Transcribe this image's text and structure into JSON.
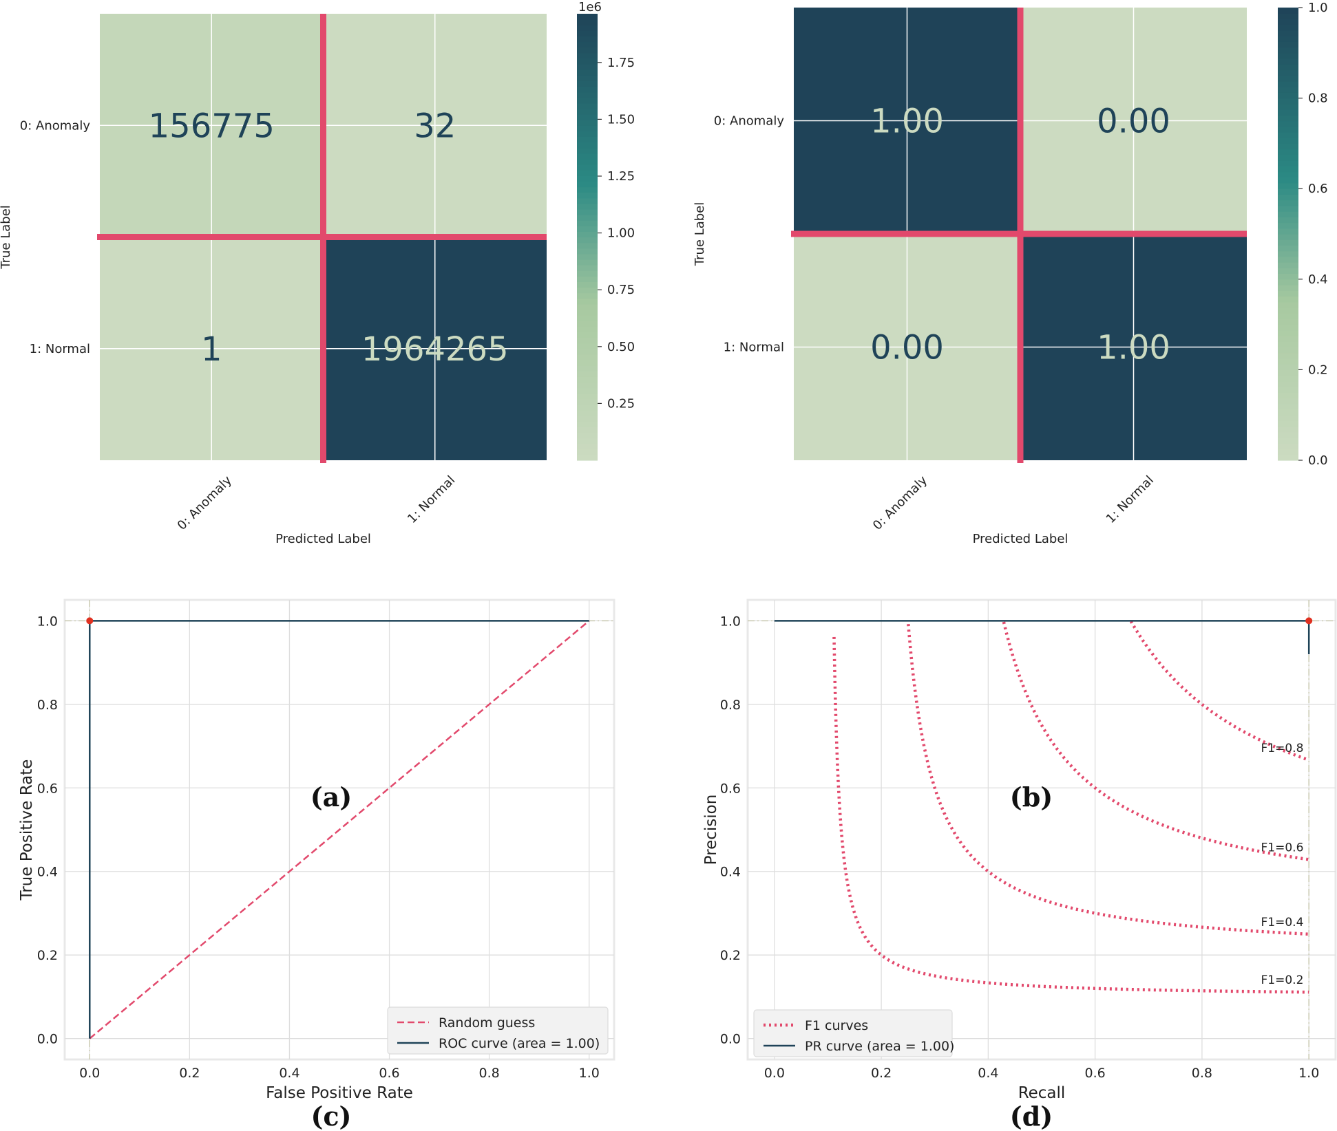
{
  "panels": {
    "a": {
      "caption": "(a)"
    },
    "b": {
      "caption": "(b)"
    },
    "c": {
      "caption": "(c)"
    },
    "d": {
      "caption": "(d)"
    }
  },
  "colors": {
    "dark": "#1f4358",
    "light": "#ccdbc1",
    "mid_green": "#a7c9a0",
    "teal": "#2b8a84",
    "highlight": "#e2496c",
    "grid": "#dedede",
    "marker": "#e03020"
  },
  "chart_data": [
    {
      "id": "a",
      "type": "heatmap",
      "title": "",
      "xlabel": "Predicted Label",
      "ylabel": "True Label",
      "x_categories": [
        "0: Anomaly",
        "1: Normal"
      ],
      "y_categories": [
        "0: Anomaly",
        "1: Normal"
      ],
      "values": [
        [
          156775,
          32
        ],
        [
          1,
          1964265
        ]
      ],
      "cell_labels": [
        [
          "156775",
          "32"
        ],
        [
          "1",
          "1964265"
        ]
      ],
      "colorbar": {
        "exponent_label": "1e6",
        "range": [
          0,
          1964265
        ],
        "ticks": [
          0.25,
          0.5,
          0.75,
          1.0,
          1.25,
          1.5,
          1.75
        ],
        "tick_labels": [
          "0.25",
          "0.50",
          "0.75",
          "1.00",
          "1.25",
          "1.50",
          "1.75"
        ],
        "tick_scale": 1000000
      }
    },
    {
      "id": "b",
      "type": "heatmap",
      "title": "",
      "xlabel": "Predicted Label",
      "ylabel": "True Label",
      "x_categories": [
        "0: Anomaly",
        "1: Normal"
      ],
      "y_categories": [
        "0: Anomaly",
        "1: Normal"
      ],
      "values": [
        [
          1.0,
          0.0
        ],
        [
          0.0,
          1.0
        ]
      ],
      "cell_labels": [
        [
          "1.00",
          "0.00"
        ],
        [
          "0.00",
          "1.00"
        ]
      ],
      "colorbar": {
        "range": [
          0,
          1
        ],
        "ticks": [
          0.0,
          0.2,
          0.4,
          0.6,
          0.8,
          1.0
        ],
        "tick_labels": [
          "0.0",
          "0.2",
          "0.4",
          "0.6",
          "0.8",
          "1.0"
        ],
        "tick_scale": 1
      }
    },
    {
      "id": "c",
      "type": "line",
      "xlabel": "False Positive Rate",
      "ylabel": "True Positive Rate",
      "xlim": [
        -0.05,
        1.05
      ],
      "ylim": [
        -0.05,
        1.05
      ],
      "ticks": [
        0.0,
        0.2,
        0.4,
        0.6,
        0.8,
        1.0
      ],
      "tick_labels": [
        "0.0",
        "0.2",
        "0.4",
        "0.6",
        "0.8",
        "1.0"
      ],
      "grid": true,
      "legend_position": "lower-right",
      "series": [
        {
          "name": "Random guess",
          "style": "dashed",
          "x": [
            0,
            1
          ],
          "y": [
            0,
            1
          ]
        },
        {
          "name": "ROC curve (area = 1.00)",
          "style": "solid",
          "x": [
            0,
            0,
            1
          ],
          "y": [
            0,
            1,
            1
          ]
        }
      ],
      "marker_point": {
        "x": 0,
        "y": 1
      }
    },
    {
      "id": "d",
      "type": "line",
      "xlabel": "Recall",
      "ylabel": "Precision",
      "xlim": [
        -0.05,
        1.05
      ],
      "ylim": [
        -0.05,
        1.05
      ],
      "ticks": [
        0.0,
        0.2,
        0.4,
        0.6,
        0.8,
        1.0
      ],
      "tick_labels": [
        "0.0",
        "0.2",
        "0.4",
        "0.6",
        "0.8",
        "1.0"
      ],
      "grid": true,
      "legend_position": "lower-left",
      "series": [
        {
          "name": "F1 curves",
          "style": "dotted"
        },
        {
          "name": "PR curve (area = 1.00)",
          "style": "solid",
          "x": [
            0,
            1,
            1
          ],
          "y": [
            1,
            1,
            0.92
          ]
        }
      ],
      "f1_curves": [
        {
          "f1": 0.2,
          "label": "F1=0.2"
        },
        {
          "f1": 0.4,
          "label": "F1=0.4"
        },
        {
          "f1": 0.6,
          "label": "F1=0.6"
        },
        {
          "f1": 0.8,
          "label": "F1=0.8"
        }
      ],
      "marker_point": {
        "x": 1,
        "y": 1
      }
    }
  ]
}
